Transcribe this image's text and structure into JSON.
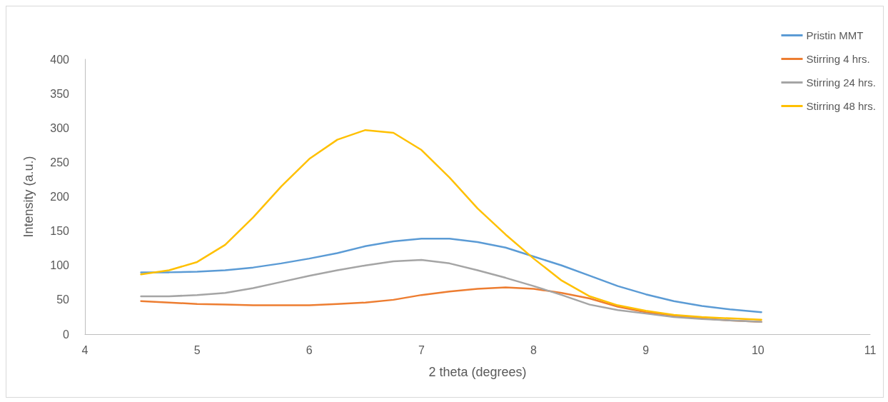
{
  "chart_data": {
    "type": "line",
    "xlabel": "2 theta (degrees)",
    "ylabel": "Intensity (a.u.)",
    "x": [
      4.5,
      4.75,
      5,
      5.25,
      5.5,
      5.75,
      6,
      6.25,
      6.5,
      6.75,
      7,
      7.25,
      7.5,
      7.75,
      8,
      8.25,
      8.5,
      8.75,
      9,
      9.25,
      9.5,
      9.75,
      10.03
    ],
    "series": [
      {
        "name": "Pristin MMT",
        "color": "#5b9bd5",
        "values": [
          90,
          90,
          91,
          93,
          97,
          103,
          110,
          118,
          128,
          135,
          139,
          139,
          134,
          126,
          113,
          100,
          85,
          70,
          58,
          48,
          41,
          36,
          32
        ]
      },
      {
        "name": "Stirring 4 hrs.",
        "color": "#ed7d31",
        "values": [
          48,
          46,
          44,
          43,
          42,
          42,
          42,
          44,
          46,
          50,
          57,
          62,
          66,
          68,
          66,
          60,
          52,
          40,
          32,
          27,
          23,
          20,
          18
        ]
      },
      {
        "name": "Stirring 24 hrs.",
        "color": "#a5a5a5",
        "values": [
          55,
          55,
          57,
          60,
          67,
          76,
          85,
          93,
          100,
          106,
          108,
          103,
          93,
          82,
          70,
          57,
          43,
          35,
          30,
          25,
          22,
          20,
          18
        ]
      },
      {
        "name": "Stirring 48 hrs.",
        "color": "#ffc000",
        "values": [
          87,
          93,
          105,
          130,
          170,
          215,
          255,
          283,
          297,
          293,
          268,
          228,
          183,
          145,
          110,
          78,
          55,
          42,
          34,
          28,
          25,
          23,
          21
        ]
      }
    ],
    "xlim": [
      4,
      11
    ],
    "xticks": [
      4,
      5,
      6,
      7,
      8,
      9,
      10,
      11
    ],
    "ylim": [
      0,
      400
    ],
    "yticks": [
      0,
      50,
      100,
      150,
      200,
      250,
      300,
      350,
      400
    ],
    "grid": false,
    "legend": "top right",
    "marker": "none",
    "line_style": "solid"
  }
}
